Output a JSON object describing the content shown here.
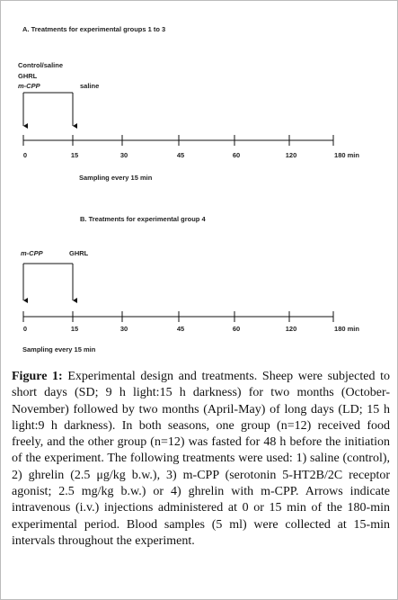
{
  "panel_a": {
    "title": "A. Treatments for experimental groups 1 to 3",
    "labels": [
      "Control/saline",
      "GHRL",
      "m-CPP",
      "saline"
    ],
    "ticks": [
      "0",
      "15",
      "30",
      "45",
      "60",
      "120",
      "180 min"
    ],
    "sampling": "Sampling every 15 min"
  },
  "panel_b": {
    "title": "B. Treatments for experimental group 4",
    "labels": [
      "m-CPP",
      "GHRL"
    ],
    "ticks": [
      "0",
      "15",
      "30",
      "45",
      "60",
      "120",
      "180 min"
    ],
    "sampling": "Sampling every 15 min"
  },
  "caption": {
    "label": "Figure 1:",
    "text": "Experimental design and treatments. Sheep were subjected to short days (SD; 9 h light:15 h darkness) for two months (October-November) followed by two months (April-May) of long days (LD; 15 h light:9 h darkness). In both seasons, one group (n=12) received food freely, and the other group (n=12) was fasted for 48 h before the initiation of the experiment. The following treatments were used: 1) saline (control), 2) ghrelin (2.5 μg/kg b.w.), 3) m-CPP (serotonin 5-HT2B/2C receptor agonist; 2.5 mg/kg b.w.) or 4) ghrelin with m-CPP. Arrows indicate intravenous (i.v.) injections administered at 0 or 15 min of the 180-min experimental period. Blood samples (5 ml) were collected at 15-min intervals throughout the experiment."
  }
}
